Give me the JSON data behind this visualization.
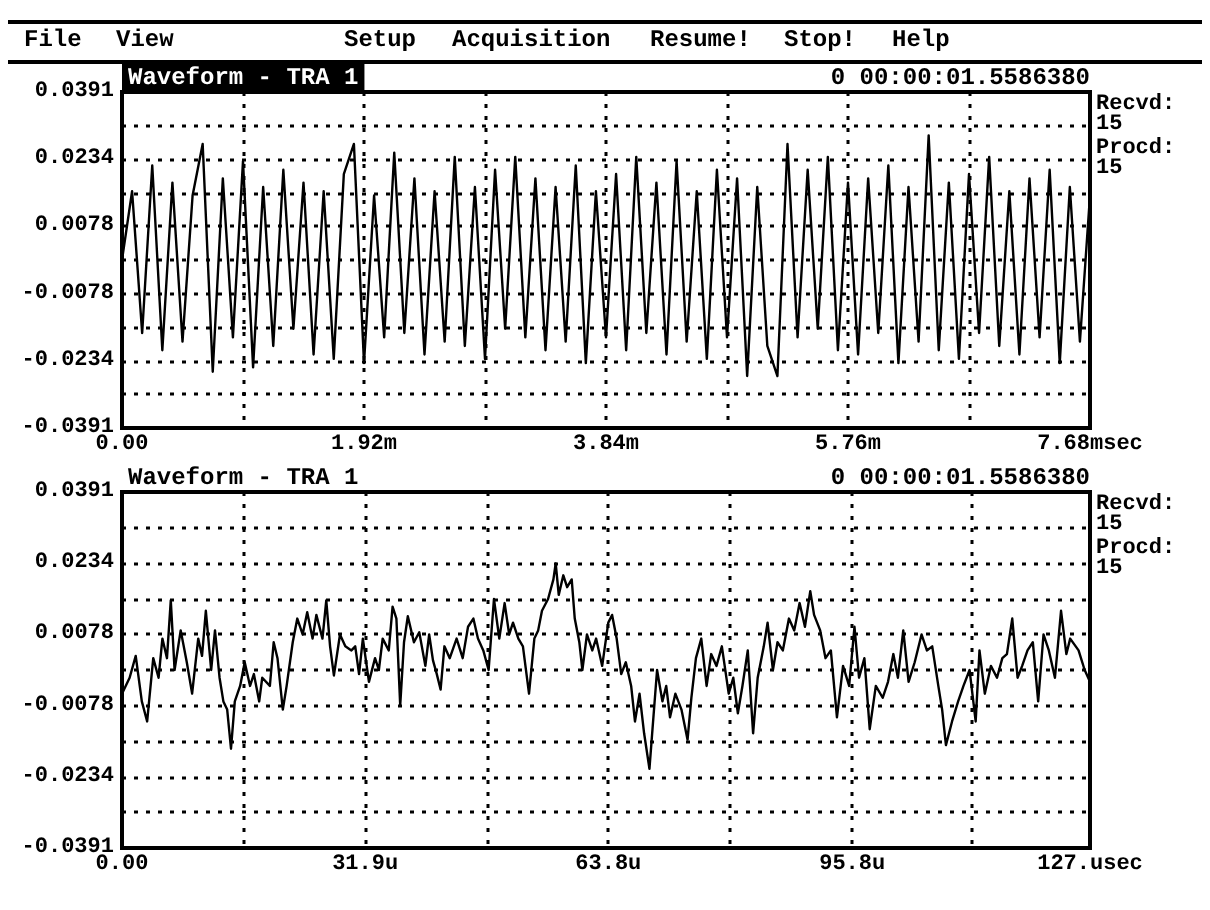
{
  "chart_data": [
    {
      "type": "line",
      "title": "Waveform - TRA 1",
      "annotations": [
        "File",
        "View",
        "Setup",
        "Acquisition",
        "Resume!",
        "Stop!",
        "Help",
        "0 00:00:01.5586380",
        "Recvd:\n15",
        "Procd:\n15"
      ],
      "x": [
        0,
        0.08,
        0.16,
        0.24,
        0.32,
        0.4,
        0.48,
        0.56,
        0.64,
        0.72,
        0.8,
        0.88,
        0.96,
        1.04,
        1.12,
        1.2,
        1.28,
        1.36,
        1.44,
        1.52,
        1.6,
        1.68,
        1.76,
        1.84,
        1.92,
        2.0,
        2.08,
        2.16,
        2.24,
        2.32,
        2.4,
        2.48,
        2.56,
        2.64,
        2.72,
        2.8,
        2.88,
        2.96,
        3.04,
        3.12,
        3.2,
        3.28,
        3.36,
        3.44,
        3.52,
        3.6,
        3.68,
        3.76,
        3.84,
        3.92,
        4.0,
        4.08,
        4.16,
        4.24,
        4.32,
        4.4,
        4.48,
        4.56,
        4.64,
        4.72,
        4.8,
        4.88,
        4.96,
        5.04,
        5.12,
        5.2,
        5.28,
        5.36,
        5.44,
        5.52,
        5.6,
        5.68,
        5.76,
        5.84,
        5.92,
        6.0,
        6.08,
        6.16,
        6.24,
        6.32,
        6.4,
        6.48,
        6.56,
        6.64,
        6.72,
        6.8,
        6.88,
        6.96,
        7.04,
        7.12,
        7.2,
        7.28,
        7.36,
        7.44,
        7.52,
        7.6,
        7.68
      ],
      "series": [
        {
          "color": "#000000",
          "values": [
            0.0,
            0.016,
            -0.017,
            0.022,
            -0.021,
            0.018,
            -0.019,
            0.015,
            0.027,
            -0.026,
            0.019,
            -0.018,
            0.023,
            -0.025,
            0.017,
            -0.02,
            0.021,
            -0.016,
            0.018,
            -0.022,
            0.016,
            -0.023,
            0.02,
            0.027,
            -0.024,
            0.015,
            -0.018,
            0.025,
            -0.017,
            0.019,
            -0.022,
            0.016,
            -0.019,
            0.024,
            -0.02,
            0.017,
            -0.023,
            0.021,
            -0.016,
            0.024,
            -0.018,
            0.019,
            -0.021,
            0.017,
            -0.019,
            0.022,
            -0.024,
            0.016,
            -0.018,
            0.02,
            -0.021,
            0.024,
            -0.017,
            0.018,
            -0.022,
            0.023,
            -0.019,
            0.016,
            -0.023,
            0.021,
            -0.018,
            0.019,
            -0.027,
            0.017,
            -0.02,
            -0.027,
            0.027,
            -0.018,
            0.021,
            -0.016,
            0.024,
            -0.021,
            0.018,
            -0.022,
            0.019,
            -0.017,
            0.022,
            -0.024,
            0.017,
            -0.019,
            0.029,
            -0.021,
            0.018,
            -0.023,
            0.02,
            -0.017,
            0.024,
            -0.02,
            0.016,
            -0.022,
            0.019,
            -0.018,
            0.021,
            -0.024,
            0.017,
            -0.019,
            0.015
          ]
        }
      ],
      "xlim": [
        0,
        7.68
      ],
      "xticks": [
        {
          "value": 0,
          "label": "0.00"
        },
        {
          "value": 0.96,
          "label": null
        },
        {
          "value": 1.92,
          "label": "1.92m"
        },
        {
          "value": 2.88,
          "label": null
        },
        {
          "value": 3.84,
          "label": "3.84m"
        },
        {
          "value": 4.8,
          "label": null
        },
        {
          "value": 5.76,
          "label": "5.76m"
        },
        {
          "value": 6.72,
          "label": null
        },
        {
          "value": 7.68,
          "label": "7.68msec"
        }
      ],
      "ylim": [
        -0.0391,
        0.0391
      ],
      "yticks": [
        {
          "value": -0.0391,
          "label": "-0.0391"
        },
        {
          "value": -0.0313,
          "label": null
        },
        {
          "value": -0.0234,
          "label": "-0.0234"
        },
        {
          "value": -0.0156,
          "label": null
        },
        {
          "value": -0.0078,
          "label": "-0.0078"
        },
        {
          "value": 0,
          "label": null
        },
        {
          "value": 0.0078,
          "label": "0.0078"
        },
        {
          "value": 0.0156,
          "label": null
        },
        {
          "value": 0.0234,
          "label": "0.0234"
        },
        {
          "value": 0.0313,
          "label": null
        },
        {
          "value": 0.0391,
          "label": "0.0391"
        }
      ],
      "grid": true
    },
    {
      "type": "line",
      "title": "Waveform - TRA 1",
      "annotations": [
        "0 00:00:01.5586380",
        "Recvd:\n15",
        "Procd:\n15"
      ],
      "x": [
        0.0,
        1.0,
        1.8,
        2.6,
        3.3,
        4.1,
        4.8,
        5.3,
        5.9,
        6.4,
        6.9,
        7.7,
        8.5,
        9.2,
        10.0,
        10.5,
        11.0,
        11.7,
        12.2,
        12.8,
        13.3,
        13.8,
        14.3,
        14.8,
        15.5,
        16.1,
        16.8,
        17.3,
        18.0,
        18.4,
        19.4,
        19.9,
        20.4,
        21.1,
        21.6,
        22.4,
        23.0,
        23.7,
        24.3,
        25.0,
        25.5,
        26.3,
        26.8,
        27.3,
        27.8,
        28.6,
        29.3,
        30.1,
        30.6,
        31.1,
        31.6,
        32.4,
        33.2,
        33.7,
        34.2,
        35.0,
        35.5,
        36.0,
        36.5,
        37.0,
        37.5,
        38.3,
        39.0,
        39.8,
        40.3,
        40.8,
        41.3,
        41.8,
        42.3,
        43.0,
        43.9,
        44.7,
        45.4,
        46.1,
        46.7,
        47.4,
        48.1,
        48.8,
        49.5,
        50.2,
        50.8,
        51.3,
        52.0,
        52.6,
        53.4,
        54.1,
        54.6,
        55.1,
        55.9,
        56.6,
        56.9,
        57.3,
        57.9,
        58.4,
        59.0,
        59.4,
        60.0,
        60.4,
        61.0,
        61.7,
        62.2,
        63.0,
        63.8,
        64.3,
        64.9,
        65.5,
        66.1,
        66.8,
        67.3,
        67.9,
        68.5,
        69.2,
        69.6,
        70.2,
        70.9,
        71.4,
        71.9,
        72.6,
        73.4,
        74.2,
        74.7,
        75.3,
        76.0,
        76.7,
        77.3,
        78.0,
        78.7,
        79.6,
        80.2,
        80.8,
        81.4,
        82.1,
        82.8,
        83.4,
        84.2,
        84.7,
        85.4,
        86.0,
        86.7,
        87.5,
        88.2,
        88.9,
        89.6,
        90.3,
        90.8,
        91.6,
        92.3,
        93.0,
        93.8,
        94.6,
        95.4,
        96.1,
        96.7,
        97.4,
        98.1,
        98.9,
        99.8,
        100.5,
        101.2,
        101.8,
        102.5,
        103.2,
        104.0,
        104.9,
        105.6,
        106.3,
        107.1,
        107.6,
        108.1,
        108.9,
        109.7,
        110.4,
        111.2,
        112.0,
        112.5,
        113.2,
        114.0,
        114.8,
        115.5,
        116.1,
        116.8,
        117.5,
        118.1,
        118.8,
        119.5,
        120.2,
        120.9,
        121.6,
        122.4,
        123.2,
        123.9,
        124.4,
        125.5,
        126.3,
        127.0
      ],
      "series": [
        {
          "color": "#000000",
          "values": [
            -0.0052,
            -0.0017,
            0.0031,
            -0.0069,
            -0.0113,
            0.0026,
            -0.0017,
            0.0069,
            0.0026,
            0.0153,
            0.0,
            0.0087,
            0.0017,
            -0.0052,
            0.0069,
            0.0031,
            0.013,
            0.0,
            0.0087,
            -0.0017,
            -0.0069,
            -0.0087,
            -0.0173,
            -0.0069,
            -0.0035,
            0.0017,
            -0.0035,
            -0.0009,
            -0.0069,
            -0.0017,
            -0.0035,
            0.0061,
            0.0026,
            -0.0087,
            -0.0035,
            0.0061,
            0.0113,
            0.0078,
            0.0127,
            0.0069,
            0.0121,
            0.0069,
            0.0153,
            0.0052,
            -0.0012,
            0.0078,
            0.0052,
            0.0043,
            0.0052,
            -0.0009,
            0.0069,
            -0.0026,
            0.0026,
            0.0,
            0.0069,
            0.0043,
            0.0139,
            0.0113,
            -0.0078,
            0.0061,
            0.0118,
            0.0061,
            0.0083,
            0.0009,
            0.0078,
            0.0021,
            -0.0009,
            -0.0043,
            0.0052,
            0.0026,
            0.0069,
            0.0026,
            0.0095,
            0.0113,
            0.0069,
            0.0043,
            0.0,
            0.0156,
            0.0069,
            0.0147,
            0.0078,
            0.0104,
            0.0069,
            0.0052,
            -0.0052,
            0.0069,
            0.0087,
            0.013,
            0.0156,
            0.0199,
            0.0234,
            0.0165,
            0.0208,
            0.0182,
            0.0199,
            0.0113,
            0.0061,
            0.0,
            0.0078,
            0.0043,
            0.0069,
            0.0009,
            0.0104,
            0.0121,
            0.0069,
            -0.0009,
            0.0017,
            -0.0035,
            -0.0113,
            -0.0052,
            -0.0139,
            -0.0217,
            -0.013,
            0.0,
            -0.0069,
            -0.0035,
            -0.0104,
            -0.0052,
            -0.0087,
            -0.0153,
            -0.0061,
            0.0026,
            0.0069,
            -0.0035,
            0.0035,
            0.0009,
            0.0052,
            -0.0052,
            -0.0017,
            -0.0095,
            -0.0035,
            0.0043,
            -0.0139,
            -0.0017,
            0.0052,
            0.0104,
            0.0,
            0.0061,
            0.0043,
            0.0113,
            0.0087,
            0.0147,
            0.0095,
            0.0173,
            0.0121,
            0.0087,
            0.0026,
            0.0043,
            -0.0104,
            0.0009,
            -0.0035,
            0.0095,
            -0.0017,
            0.0026,
            -0.013,
            -0.0035,
            -0.0061,
            -0.0026,
            0.0035,
            -0.0017,
            0.0087,
            -0.0026,
            0.0017,
            0.0078,
            0.0043,
            0.0052,
            -0.0035,
            -0.0087,
            -0.0165,
            -0.0113,
            -0.0069,
            -0.0035,
            0.0,
            -0.0113,
            0.0043,
            -0.0052,
            0.0009,
            -0.0017,
            0.0026,
            0.0035,
            0.0113,
            -0.0017,
            0.0009,
            0.0043,
            0.0061,
            -0.0069,
            0.0078,
            0.0043,
            -0.0017,
            0.013,
            0.0035,
            0.0069,
            0.0043,
            0.0,
            -0.0026
          ]
        }
      ],
      "xlim": [
        0,
        127
      ],
      "xticks": [
        {
          "value": 0,
          "label": "0.00"
        },
        {
          "value": 15.95,
          "label": null
        },
        {
          "value": 31.9,
          "label": "31.9u"
        },
        {
          "value": 47.85,
          "label": null
        },
        {
          "value": 63.8,
          "label": "63.8u"
        },
        {
          "value": 79.75,
          "label": null
        },
        {
          "value": 95.8,
          "label": "95.8u"
        },
        {
          "value": 111.4,
          "label": null
        },
        {
          "value": 127,
          "label": "127.usec"
        }
      ],
      "ylim": [
        -0.0391,
        0.0391
      ],
      "yticks": [
        {
          "value": -0.0391,
          "label": "-0.0391"
        },
        {
          "value": -0.0313,
          "label": null
        },
        {
          "value": -0.0234,
          "label": "-0.0234"
        },
        {
          "value": -0.0156,
          "label": null
        },
        {
          "value": -0.0078,
          "label": "-0.0078"
        },
        {
          "value": 0,
          "label": null
        },
        {
          "value": 0.0078,
          "label": "0.0078"
        },
        {
          "value": 0.0156,
          "label": null
        },
        {
          "value": 0.0234,
          "label": "0.0234"
        },
        {
          "value": 0.0313,
          "label": null
        },
        {
          "value": 0.0391,
          "label": "0.0391"
        }
      ],
      "grid": true
    }
  ]
}
